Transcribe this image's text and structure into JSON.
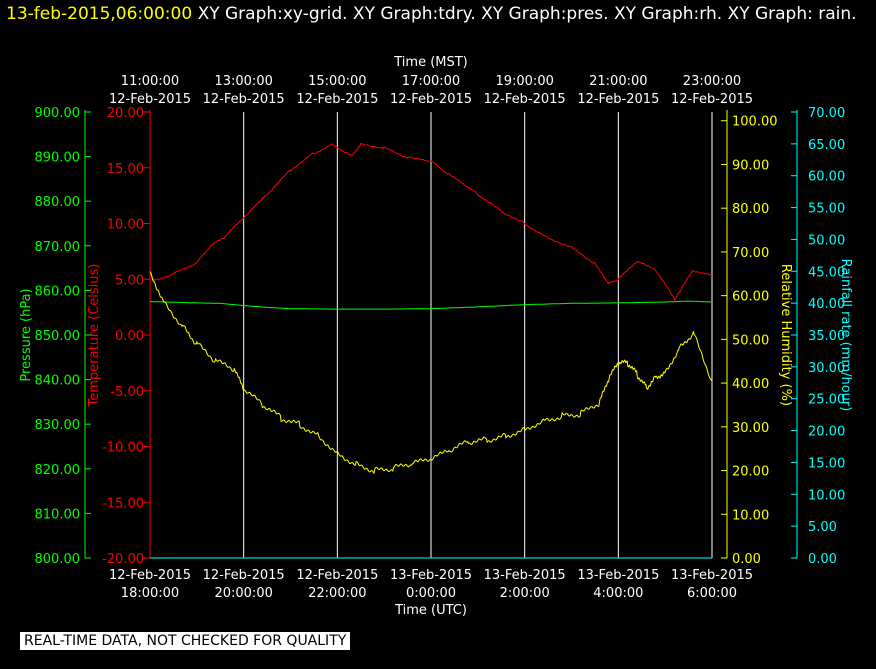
{
  "header": {
    "timestamp": "13-feb-2015,06:00:00",
    "titles": "XY Graph:xy-grid.  XY Graph:tdry.  XY Graph:pres.  XY Graph:rh.  XY Graph: rain."
  },
  "footer": {
    "label": "REAL-TIME DATA, NOT CHECKED FOR QUALITY"
  },
  "colors": {
    "pressure": "#00ff00",
    "temperature": "#ff0000",
    "humidity": "#ffff00",
    "rainfall": "#00ffff",
    "grid": "#ffffff",
    "background": "#000000"
  },
  "chart_data": {
    "type": "line",
    "top_axis": {
      "label": "Time (MST)",
      "ticks": [
        [
          "11:00:00",
          "12-Feb-2015"
        ],
        [
          "13:00:00",
          "12-Feb-2015"
        ],
        [
          "15:00:00",
          "12-Feb-2015"
        ],
        [
          "17:00:00",
          "12-Feb-2015"
        ],
        [
          "19:00:00",
          "12-Feb-2015"
        ],
        [
          "21:00:00",
          "12-Feb-2015"
        ],
        [
          "23:00:00",
          "12-Feb-2015"
        ]
      ]
    },
    "bottom_axis": {
      "label": "Time (UTC)",
      "ticks": [
        [
          "12-Feb-2015",
          "18:00:00"
        ],
        [
          "12-Feb-2015",
          "20:00:00"
        ],
        [
          "12-Feb-2015",
          "22:00:00"
        ],
        [
          "13-Feb-2015",
          "0:00:00"
        ],
        [
          "13-Feb-2015",
          "2:00:00"
        ],
        [
          "13-Feb-2015",
          "4:00:00"
        ],
        [
          "13-Feb-2015",
          "6:00:00"
        ]
      ]
    },
    "x_range_hours_utc": [
      18,
      30
    ],
    "axes": {
      "pressure": {
        "label": "Pressure (hPa)",
        "range": [
          800,
          900
        ],
        "ticks": [
          "800.00",
          "810.00",
          "820.00",
          "830.00",
          "840.00",
          "850.00",
          "860.00",
          "870.00",
          "880.00",
          "890.00",
          "900.00"
        ]
      },
      "temperature": {
        "label": "Temperature (Celsius)",
        "range": [
          -20,
          20
        ],
        "ticks": [
          "-20.00",
          "-15.00",
          "-10.00",
          "-5.00",
          "0.00",
          "5.00",
          "10.00",
          "15.00",
          "20.00"
        ]
      },
      "humidity": {
        "label": "Relative Humidity (%)",
        "range": [
          0,
          102
        ],
        "ticks": [
          "0.00",
          "10.00",
          "20.00",
          "30.00",
          "40.00",
          "50.00",
          "60.00",
          "70.00",
          "80.00",
          "90.00",
          "100.00"
        ]
      },
      "rainfall": {
        "label": "Rainfall rate (mm/hour)",
        "range": [
          0,
          70
        ],
        "ticks": [
          "0.00",
          "5.00",
          "10.00",
          "15.00",
          "20.00",
          "25.00",
          "30.00",
          "35.00",
          "40.00",
          "45.00",
          "50.00",
          "55.00",
          "60.00",
          "65.00",
          "70.00"
        ]
      }
    },
    "grid": true,
    "series": [
      {
        "name": "Temperature (Celsius)",
        "axis": "temperature",
        "x": [
          18.0,
          18.1,
          18.5,
          19.0,
          19.3,
          19.6,
          20.0,
          20.5,
          21.0,
          21.5,
          21.9,
          22.3,
          22.5,
          23.0,
          23.5,
          24.0,
          24.3,
          24.7,
          25.0,
          25.5,
          26.0,
          26.5,
          27.0,
          27.5,
          27.8,
          28.0,
          28.4,
          28.8,
          29.2,
          29.6,
          30.0
        ],
        "y": [
          5.5,
          4.9,
          5.5,
          6.5,
          8.0,
          8.8,
          10.5,
          12.6,
          14.8,
          16.3,
          17.1,
          16.1,
          17.1,
          16.8,
          15.9,
          15.6,
          14.6,
          13.5,
          12.6,
          11.1,
          10.0,
          8.7,
          7.9,
          6.4,
          4.6,
          5.0,
          6.6,
          5.8,
          3.2,
          5.8,
          5.3
        ]
      },
      {
        "name": "Pressure (hPa)",
        "axis": "pressure",
        "x": [
          18.0,
          19.0,
          19.5,
          20.0,
          20.5,
          21.0,
          22.0,
          23.0,
          24.0,
          25.0,
          26.0,
          27.0,
          28.0,
          28.5,
          29.0,
          29.5,
          30.0
        ],
        "y": [
          857.5,
          857.2,
          857.1,
          856.6,
          856.2,
          855.9,
          855.8,
          855.8,
          855.9,
          856.3,
          856.8,
          857.1,
          857.2,
          857.3,
          857.4,
          857.6,
          857.4
        ]
      },
      {
        "name": "Relative Humidity (%)",
        "axis": "humidity",
        "x": [
          18.0,
          18.3,
          18.7,
          19.0,
          19.4,
          19.8,
          20.0,
          20.4,
          20.8,
          21.2,
          21.6,
          22.0,
          22.4,
          22.8,
          23.2,
          23.6,
          24.0,
          24.4,
          24.8,
          25.2,
          25.6,
          26.0,
          26.4,
          26.8,
          27.2,
          27.6,
          27.8,
          28.0,
          28.2,
          28.4,
          28.6,
          28.8,
          29.0,
          29.3,
          29.6,
          30.0
        ],
        "y": [
          65.5,
          58.5,
          53.0,
          49.0,
          45.0,
          43.0,
          38.5,
          35.0,
          32.0,
          30.5,
          28.0,
          24.0,
          21.5,
          20.0,
          20.5,
          21.5,
          22.5,
          24.5,
          26.5,
          27.0,
          28.0,
          29.5,
          31.5,
          32.5,
          33.0,
          35.5,
          41.0,
          44.5,
          44.5,
          42.0,
          39.0,
          41.5,
          42.5,
          48.0,
          51.5,
          40.5
        ]
      },
      {
        "name": "Rainfall rate (mm/hour)",
        "axis": "rainfall",
        "x": [
          18.0,
          30.0
        ],
        "y": [
          0.0,
          0.0
        ]
      }
    ]
  }
}
